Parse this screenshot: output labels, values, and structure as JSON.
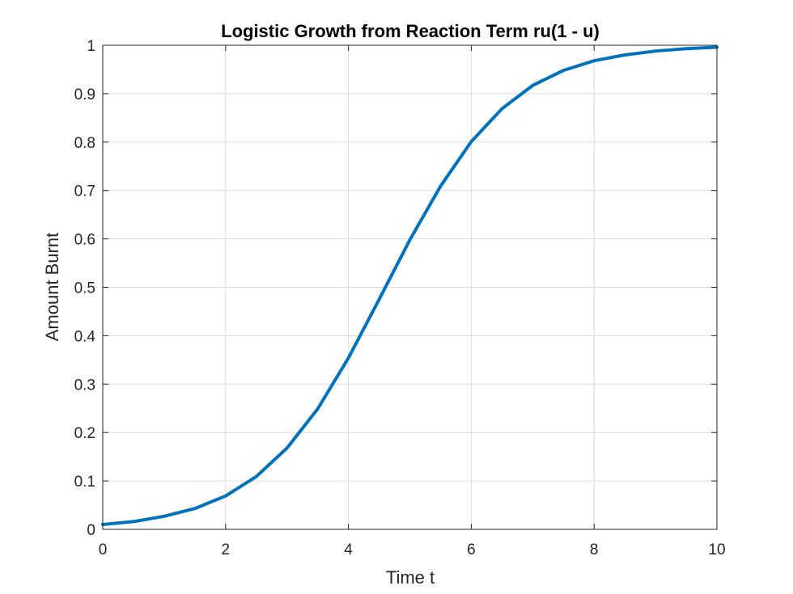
{
  "chart_data": {
    "type": "line",
    "title": "Logistic Growth from Reaction Term ru(1 - u)",
    "xlabel": "Time t",
    "ylabel": "Amount Burnt",
    "xlim": [
      0,
      10
    ],
    "ylim": [
      0,
      1
    ],
    "xticks": [
      0,
      2,
      4,
      6,
      8,
      10
    ],
    "xtick_labels": [
      "0",
      "2",
      "4",
      "6",
      "8",
      "10"
    ],
    "yticks": [
      0,
      0.1,
      0.2,
      0.3,
      0.4,
      0.5,
      0.6,
      0.7,
      0.8,
      0.9,
      1
    ],
    "ytick_labels": [
      "0",
      "0.1",
      "0.2",
      "0.3",
      "0.4",
      "0.5",
      "0.6",
      "0.7",
      "0.8",
      "0.9",
      "1"
    ],
    "grid": true,
    "series": [
      {
        "color": "#0072bd",
        "x": [
          0,
          0.5,
          1,
          1.5,
          2,
          2.5,
          3,
          3.5,
          4,
          4.5,
          5,
          5.5,
          6,
          6.5,
          7,
          7.5,
          8,
          8.5,
          9,
          9.5,
          10
        ],
        "y": [
          0.01,
          0.016,
          0.027,
          0.043,
          0.069,
          0.109,
          0.168,
          0.249,
          0.354,
          0.475,
          0.598,
          0.709,
          0.801,
          0.869,
          0.917,
          0.948,
          0.968,
          0.98,
          0.988,
          0.993,
          0.996
        ]
      }
    ]
  }
}
